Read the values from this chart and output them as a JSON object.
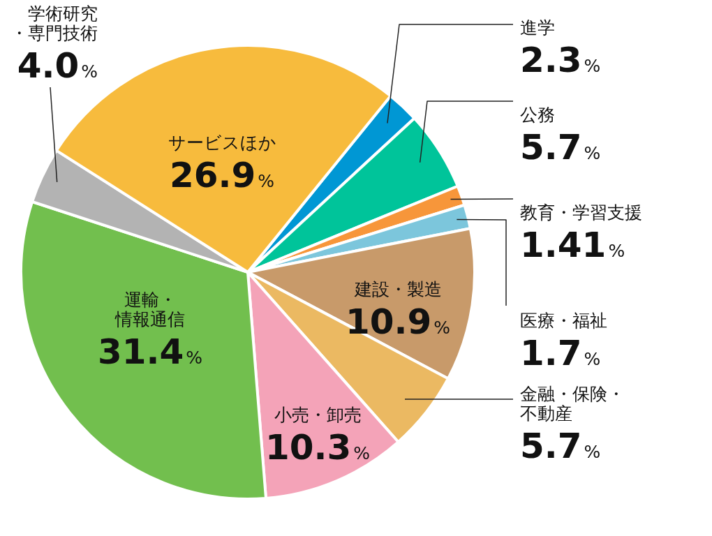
{
  "chart_data": {
    "type": "pie",
    "categories": [
      "進学",
      "公務",
      "教育・学習支援",
      "医療・福祉",
      "建設・製造",
      "金融・保険・不動産",
      "小売・卸売",
      "運輸・情報通信",
      "学術研究・専門技術",
      "サービスほか"
    ],
    "values": [
      2.3,
      5.7,
      1.41,
      1.7,
      10.9,
      5.7,
      10.3,
      31.4,
      4.0,
      26.9
    ],
    "value_labels": [
      "2.3%",
      "5.7%",
      "1.41%",
      "1.7%",
      "10.9%",
      "5.7%",
      "10.3%",
      "31.4%",
      "4.0%",
      "26.9%"
    ],
    "colors": [
      "#0097d4",
      "#00c49a",
      "#f7963a",
      "#7cc6dc",
      "#c89a6a",
      "#ebb962",
      "#f4a3b8",
      "#72bf4e",
      "#b3b3b3",
      "#f7bb3d"
    ]
  }
}
